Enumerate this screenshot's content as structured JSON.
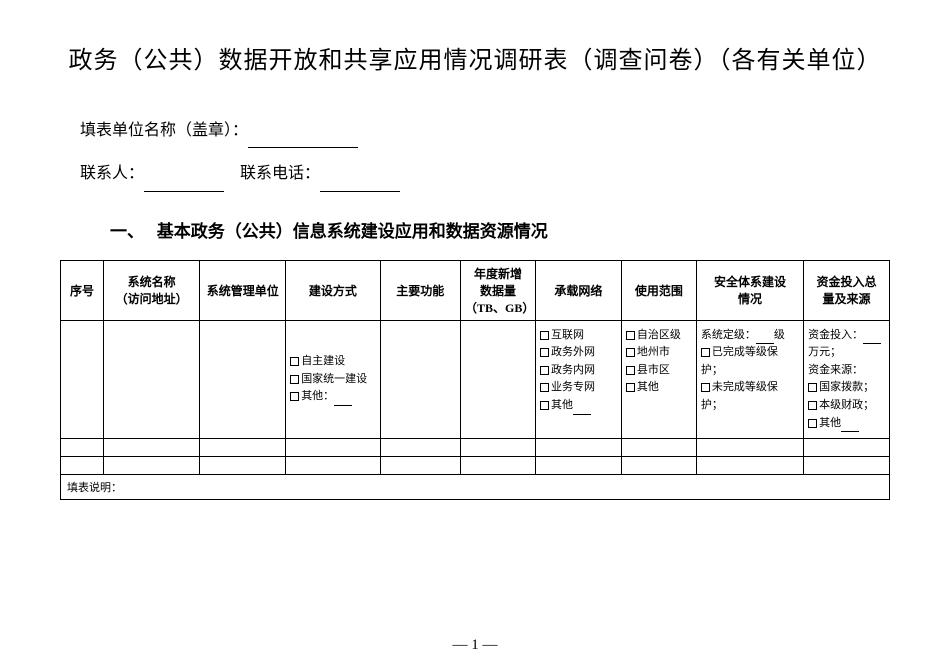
{
  "title": "政务（公共）数据开放和共享应用情况调研表（调查问卷）（各有关单位）",
  "fields": {
    "org_label": "填表单位名称（盖章）：",
    "contact_label": "联系人：",
    "phone_label": "联系电话："
  },
  "section": {
    "number": "一、",
    "heading": "基本政务（公共）信息系统建设应用和数据资源情况"
  },
  "table": {
    "headers": {
      "seq": "序号",
      "name": "系统名称\n（访问地址）",
      "mgmt": "系统管理单位",
      "build": "建设方式",
      "func": "主要功能",
      "data": "年度新增\n数据量\n（TB、GB）",
      "net": "承载网络",
      "scope": "使用范围",
      "sec": "安全体系建设\n情况",
      "fund": "资金投入总\n量及来源"
    },
    "options": {
      "build": [
        "自主建设",
        "国家统一建设",
        "其他："
      ],
      "net": [
        "互联网",
        "政务外网",
        "政务内网",
        "业务专网",
        "其他"
      ],
      "scope": [
        "自治区级",
        "地州市",
        "县市区",
        "其他"
      ],
      "sec": {
        "level_label": "系统定级：",
        "level_suffix": "级",
        "done": "已完成等级保护；",
        "undone": "未完成等级保护；"
      },
      "fund": {
        "invest_label": "资金投入：",
        "invest_unit": "万元；",
        "source_label": "资金来源：",
        "items": [
          "国家拨款；",
          "本级财政；",
          "其他"
        ]
      }
    },
    "desc_label": "填表说明："
  },
  "page_number": "— 1 —"
}
